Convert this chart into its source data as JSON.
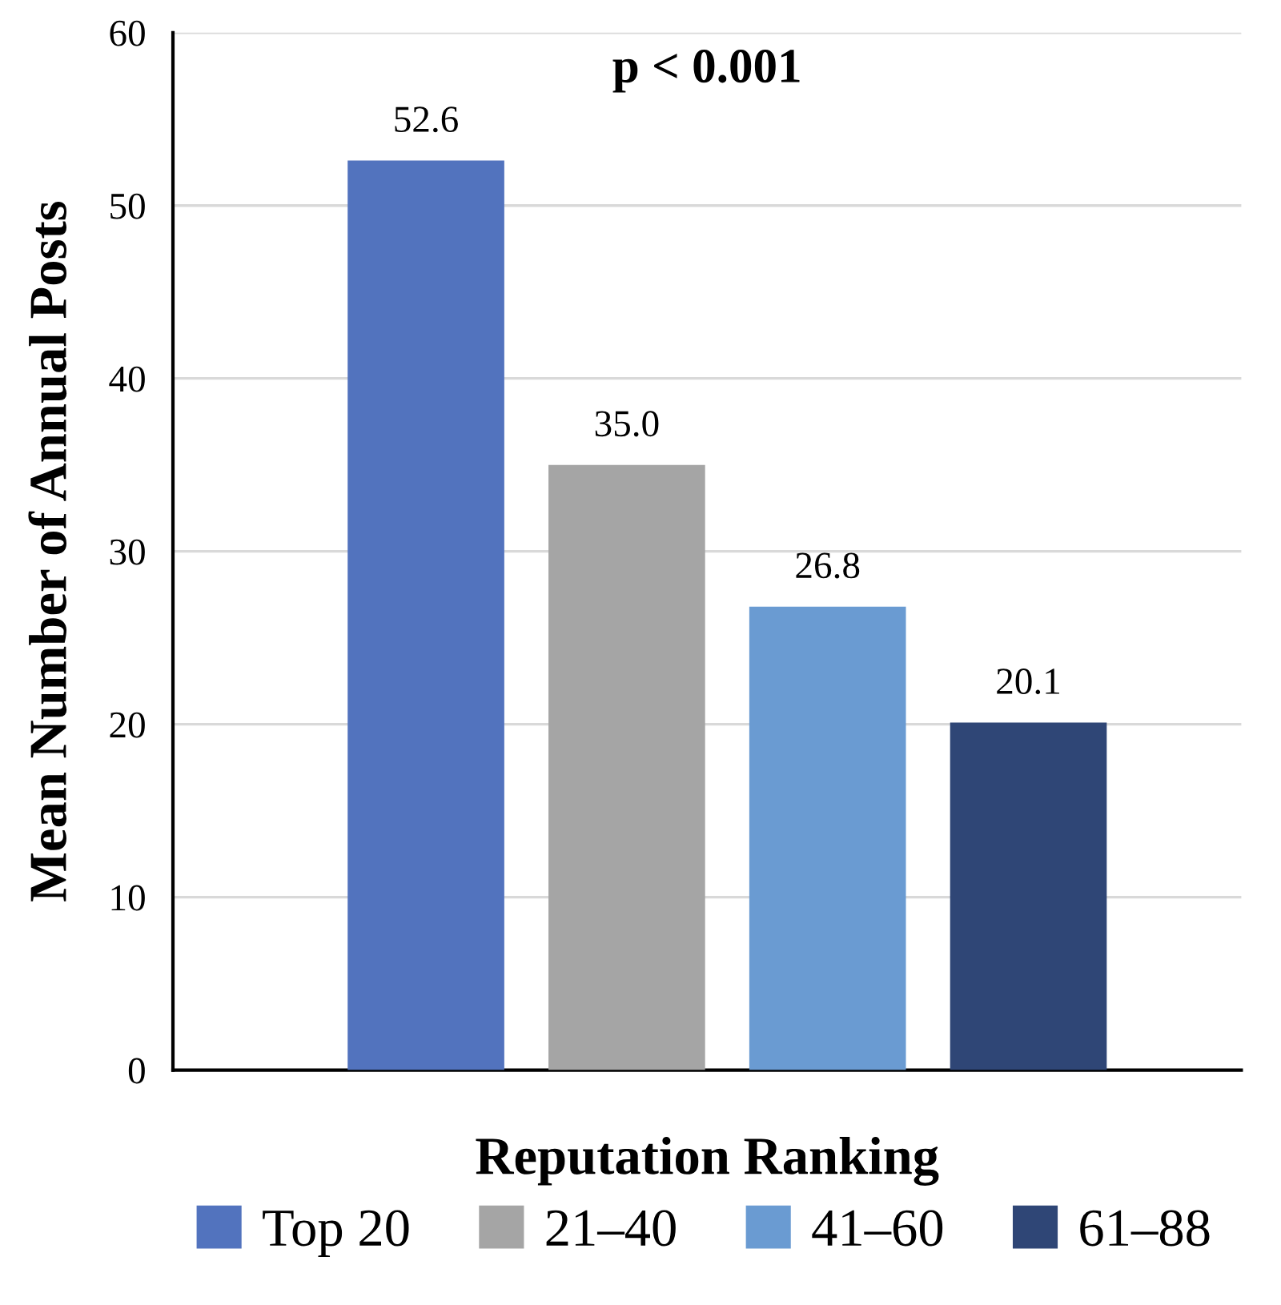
{
  "chart_data": {
    "type": "bar",
    "xlabel": "Reputation Ranking",
    "ylabel": "Mean Number of Annual Posts",
    "annotations": [
      "p < 0.001"
    ],
    "categories": [
      null,
      null,
      null,
      null
    ],
    "series": [
      {
        "name": "Top 20",
        "color": "#5273be",
        "values": [
          52.6,
          null,
          null,
          null
        ]
      },
      {
        "name": "21–40",
        "color": "#a5a5a5",
        "values": [
          null,
          35.0,
          null,
          null
        ]
      },
      {
        "name": "41–60",
        "color": "#6a9bd2",
        "values": [
          null,
          null,
          26.8,
          null
        ]
      },
      {
        "name": "61–88",
        "color": "#2f4676",
        "values": [
          null,
          null,
          null,
          20.1
        ]
      }
    ],
    "value_labels": [
      "52.6",
      "35.0",
      "26.8",
      "20.1"
    ],
    "ylim": [
      0,
      60
    ],
    "yticks": [
      0,
      10,
      20,
      30,
      40,
      50,
      60
    ],
    "grid": "y",
    "legend": "bottom",
    "tick_labels": "y"
  }
}
